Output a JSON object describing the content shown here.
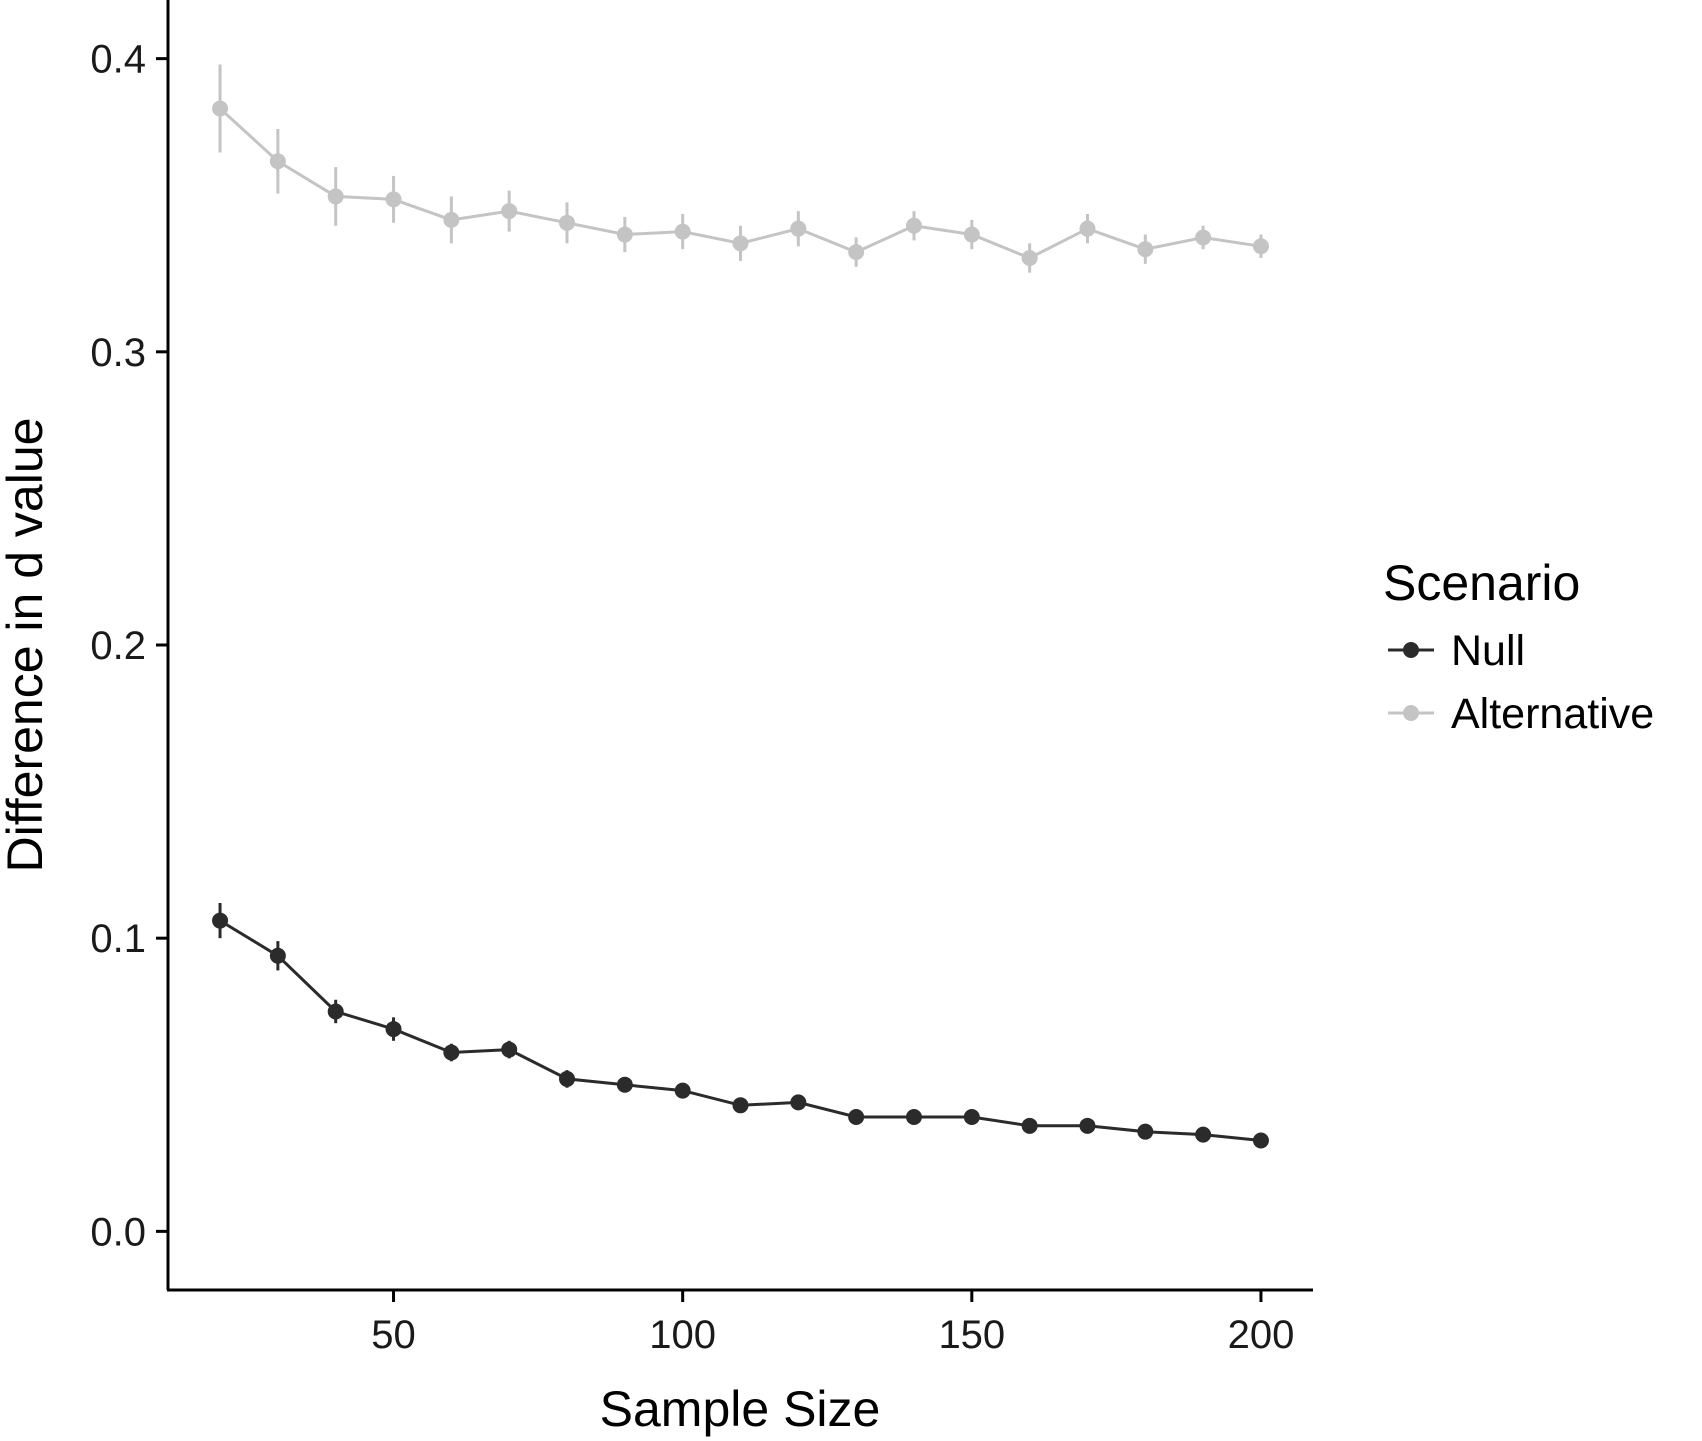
{
  "chart_data": {
    "type": "line",
    "title": "",
    "xlabel": "Sample Size",
    "ylabel": "Difference in d value",
    "xlim": [
      11,
      209
    ],
    "ylim": [
      -0.02,
      0.42
    ],
    "x_ticks": [
      50,
      100,
      150,
      200
    ],
    "x_tick_labels": [
      "50",
      "100",
      "150",
      "200"
    ],
    "y_ticks": [
      0.0,
      0.1,
      0.2,
      0.3,
      0.4
    ],
    "y_tick_labels": [
      "0.0",
      "0.1",
      "0.2",
      "0.3",
      "0.4"
    ],
    "grid": false,
    "legend": {
      "title": "Scenario",
      "placement": "right"
    },
    "x": [
      20,
      30,
      40,
      50,
      60,
      70,
      80,
      90,
      100,
      110,
      120,
      130,
      140,
      150,
      160,
      170,
      180,
      190,
      200
    ],
    "series": [
      {
        "name": "Null",
        "color": "#2b2b2b",
        "values": [
          0.106,
          0.094,
          0.075,
          0.069,
          0.061,
          0.062,
          0.052,
          0.05,
          0.048,
          0.043,
          0.044,
          0.039,
          0.039,
          0.039,
          0.036,
          0.036,
          0.034,
          0.033,
          0.031
        ],
        "error": [
          0.006,
          0.005,
          0.004,
          0.004,
          0.003,
          0.003,
          0.003,
          0.002,
          0.002,
          0.002,
          0.002,
          0.002,
          0.002,
          0.002,
          0.002,
          0.002,
          0.002,
          0.002,
          0.002
        ]
      },
      {
        "name": "Alternative",
        "color": "#c4c4c4",
        "values": [
          0.383,
          0.365,
          0.353,
          0.352,
          0.345,
          0.348,
          0.344,
          0.34,
          0.341,
          0.337,
          0.342,
          0.334,
          0.343,
          0.34,
          0.332,
          0.342,
          0.335,
          0.339,
          0.336
        ],
        "error": [
          0.015,
          0.011,
          0.01,
          0.008,
          0.008,
          0.007,
          0.007,
          0.006,
          0.006,
          0.006,
          0.006,
          0.005,
          0.005,
          0.005,
          0.005,
          0.005,
          0.005,
          0.004,
          0.004
        ]
      }
    ]
  }
}
